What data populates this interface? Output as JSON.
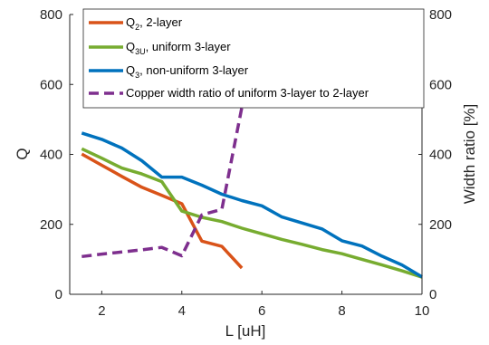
{
  "chart_data": {
    "type": "line",
    "xlabel": "L [uH]",
    "ylabel": "Q",
    "y2label": "Width ratio [%]",
    "xlim": [
      1.2,
      10
    ],
    "ylim": [
      0,
      800
    ],
    "y2lim": [
      0,
      800
    ],
    "xticks": [
      "2",
      "4",
      "6",
      "8",
      "10"
    ],
    "yticks": [
      "0",
      "200",
      "400",
      "600",
      "800"
    ],
    "y2ticks": [
      "0",
      "200",
      "400",
      "600",
      "800"
    ],
    "grid": false,
    "legend_position": "top-left",
    "series": [
      {
        "legend_main": "Q",
        "legend_sub": "2",
        "legend_rest": ", 2-layer",
        "axis": "left",
        "color": "#D95319",
        "dash": "solid",
        "x": [
          1.5,
          2.0,
          2.5,
          3.0,
          3.5,
          4.0,
          4.5,
          5.0,
          5.5
        ],
        "y": [
          401,
          369,
          337,
          306,
          283,
          259,
          152,
          137,
          75
        ]
      },
      {
        "legend_main": "Q",
        "legend_sub": "3U",
        "legend_rest": ", uniform 3-layer",
        "axis": "left",
        "color": "#77AC30",
        "dash": "solid",
        "x": [
          1.5,
          2.0,
          2.5,
          3.0,
          3.5,
          4.0,
          4.5,
          5.0,
          5.5,
          6.0,
          6.5,
          7.0,
          7.5,
          8.0,
          8.5,
          9.0,
          9.5,
          10.0
        ],
        "y": [
          416,
          389,
          361,
          344,
          322,
          238,
          220,
          208,
          189,
          173,
          157,
          143,
          128,
          116,
          100,
          84,
          67,
          49
        ]
      },
      {
        "legend_main": "Q",
        "legend_sub": "3",
        "legend_rest": ", non-uniform 3-layer",
        "axis": "left",
        "color": "#0072BD",
        "dash": "solid",
        "x": [
          1.5,
          2.0,
          2.5,
          3.0,
          3.5,
          4.0,
          4.5,
          5.0,
          5.5,
          6.0,
          6.5,
          7.0,
          7.5,
          8.0,
          8.5,
          9.0,
          9.5,
          10.0
        ],
        "y": [
          461,
          443,
          418,
          382,
          335,
          335,
          312,
          286,
          268,
          253,
          221,
          204,
          187,
          153,
          138,
          109,
          84,
          50
        ]
      },
      {
        "legend_main": "Copper width ratio of uniform 3-layer to 2-layer",
        "legend_sub": "",
        "legend_rest": "",
        "axis": "right",
        "color": "#7E2F8E",
        "dash": "dashed",
        "x": [
          1.5,
          2.0,
          2.5,
          3.0,
          3.5,
          4.0,
          4.5,
          5.0,
          5.5
        ],
        "y": [
          108,
          115,
          121,
          127,
          134,
          110,
          227,
          243,
          535
        ]
      }
    ]
  }
}
